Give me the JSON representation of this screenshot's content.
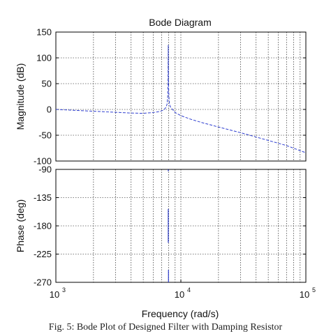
{
  "page": {
    "header_text": "",
    "caption": "Fig. 5: Bode Plot of Designed Filter with Damping Resistor"
  },
  "chart_data": {
    "type": "line",
    "title": "Bode Diagram",
    "xlabel": "Frequency  (rad/s)",
    "x_scale": "log",
    "xlim": [
      1000,
      100000
    ],
    "x_ticks": [
      {
        "value": 1000,
        "base": "10",
        "exp": "3"
      },
      {
        "value": 10000,
        "base": "10",
        "exp": "4"
      },
      {
        "value": 100000,
        "base": "10",
        "exp": "5"
      }
    ],
    "grid": true,
    "line_color": "#2f3fd0",
    "panels": [
      {
        "name": "magnitude",
        "ylabel": "Magnitude (dB)",
        "ylim": [
          -100,
          150
        ],
        "yticks": [
          150,
          100,
          50,
          0,
          -50,
          -100
        ],
        "series": [
          {
            "x": [
              1000,
              1500,
              2000,
              3000,
              4000,
              5000,
              6000,
              6800,
              7300,
              7600,
              7750,
              7850,
              7900,
              7930,
              7960,
              8000,
              8040,
              8100,
              8200,
              8500,
              9000,
              10000,
              12000,
              15000,
              20000,
              30000,
              50000,
              70000,
              100000
            ],
            "y": [
              0,
              -2,
              -3.5,
              -5.5,
              -7,
              -7.5,
              -6,
              -4,
              -1,
              4,
              10,
              25,
              60,
              125,
              60,
              35,
              22,
              12,
              6,
              1,
              -6,
              -12,
              -19,
              -26,
              -34,
              -45,
              -60,
              -70,
              -84
            ]
          }
        ]
      },
      {
        "name": "phase",
        "ylabel": "Phase (deg)",
        "ylim": [
          -270,
          -90
        ],
        "yticks": [
          -90,
          -135,
          -180,
          -225,
          -270
        ],
        "series": [
          {
            "segments": [
              {
                "x": [
                  7930,
                  7930
                ],
                "y": [
                  -90,
                  -93
                ]
              },
              {
                "x": [
                  7930,
                  7930
                ],
                "y": [
                  -153,
                  -207
                ]
              },
              {
                "x": [
                  7960,
                  7960
                ],
                "y": [
                  -250,
                  -270
                ]
              }
            ]
          }
        ]
      }
    ]
  }
}
